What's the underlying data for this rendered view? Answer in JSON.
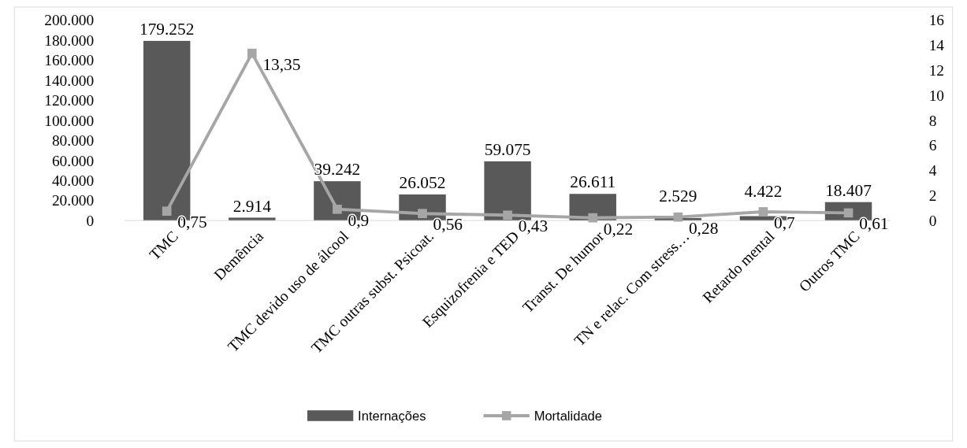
{
  "chart_data": {
    "type": "bar",
    "categories": [
      "TMC",
      "Demência",
      "TMC devido uso de álcool",
      "TMC outras subst. Psicoat.",
      "Esquizofrenia e TED",
      "Transt. De humor",
      "TN e relac. Com stress…",
      "Retardo mental",
      "Outros TMC"
    ],
    "series": [
      {
        "name": "Internações",
        "color": "#595959",
        "values": [
          179252,
          2914,
          39242,
          26052,
          59075,
          26611,
          2529,
          4422,
          18407
        ],
        "value_labels": [
          "179.252",
          "2.914",
          "39.242",
          "26.052",
          "59.075",
          "26.611",
          "2.529",
          "4.422",
          "18.407"
        ]
      },
      {
        "name": "Mortalidade",
        "type": "line",
        "axis": "y2",
        "color": "#a6a6a6",
        "marker": "square",
        "values": [
          0.75,
          13.35,
          0.9,
          0.56,
          0.43,
          0.22,
          0.28,
          0.7,
          0.61
        ],
        "value_labels": [
          "0,75",
          "13,35",
          "0,9",
          "0,56",
          "0,43",
          "0,22",
          "0,28",
          "0,7",
          "0,61"
        ]
      }
    ],
    "ylim": [
      0,
      200000
    ],
    "yticks": [
      {
        "value": 0,
        "label": "0"
      },
      {
        "value": 20000,
        "label": "20.000"
      },
      {
        "value": 40000,
        "label": "40.000"
      },
      {
        "value": 60000,
        "label": "60.000"
      },
      {
        "value": 80000,
        "label": "80.000"
      },
      {
        "value": 100000,
        "label": "100.000"
      },
      {
        "value": 120000,
        "label": "120.000"
      },
      {
        "value": 140000,
        "label": "140.000"
      },
      {
        "value": 160000,
        "label": "160.000"
      },
      {
        "value": 180000,
        "label": "180.000"
      },
      {
        "value": 200000,
        "label": "200.000"
      }
    ],
    "y2lim": [
      0,
      16
    ],
    "y2ticks": [
      0,
      2,
      4,
      6,
      8,
      10,
      12,
      14,
      16
    ],
    "legend": "bottom",
    "grid": false
  }
}
